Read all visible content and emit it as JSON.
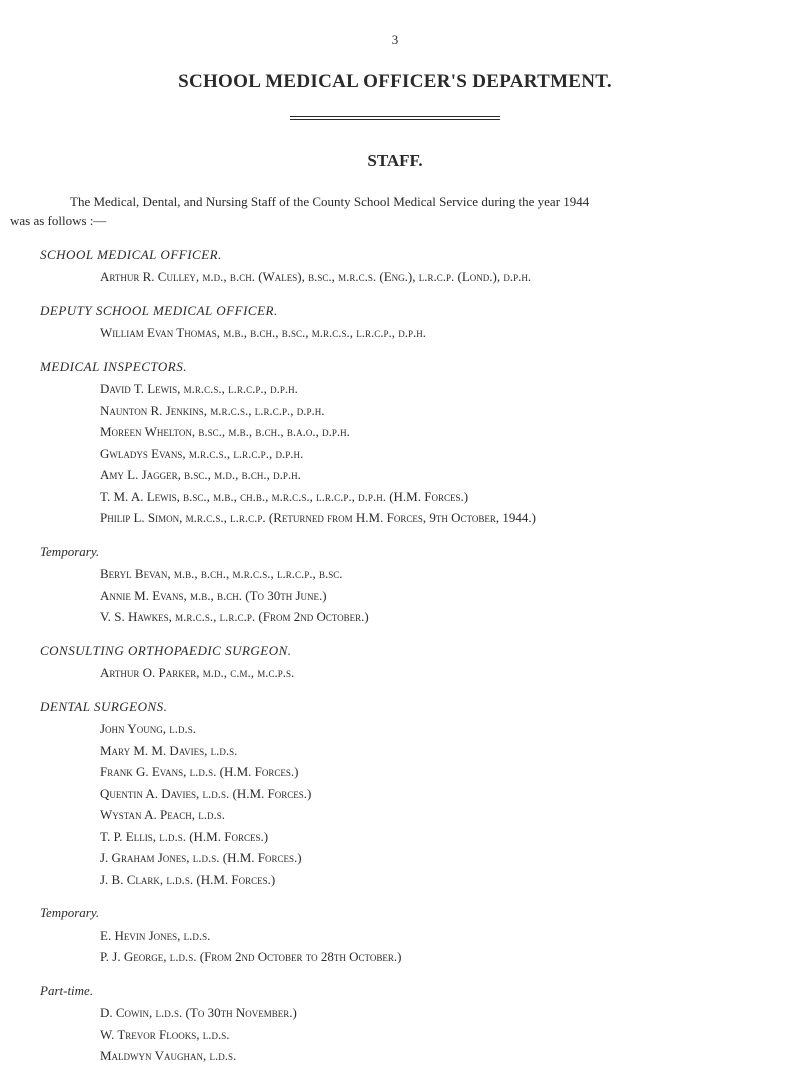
{
  "page_number": "3",
  "main_title": "SCHOOL MEDICAL OFFICER'S DEPARTMENT.",
  "staff_heading": "STAFF.",
  "intro_line1": "The Medical, Dental, and Nursing Staff of the County School Medical Service during the year 1944",
  "intro_line2": "was as follows :—",
  "sections": {
    "smo": {
      "title": "SCHOOL MEDICAL OFFICER.",
      "people": [
        "Arthur R. Culley, m.d., b.ch. (Wales), b.sc., m.r.c.s. (Eng.), l.r.c.p. (Lond.), d.p.h."
      ]
    },
    "dsmo": {
      "title": "DEPUTY SCHOOL MEDICAL OFFICER.",
      "people": [
        "William Evan Thomas, m.b., b.ch., b.sc., m.r.c.s., l.r.c.p., d.p.h."
      ]
    },
    "mi": {
      "title": "MEDICAL INSPECTORS.",
      "people": [
        "David T. Lewis, m.r.c.s., l.r.c.p., d.p.h.",
        "Naunton R. Jenkins, m.r.c.s., l.r.c.p., d.p.h.",
        "Moreen Whelton, b.sc., m.b., b.ch., b.a.o., d.p.h.",
        "Gwladys Evans, m.r.c.s., l.r.c.p., d.p.h.",
        "Amy L. Jagger, b.sc., m.d., b.ch., d.p.h.",
        "T. M. A. Lewis, b.sc., m.b., ch.b., m.r.c.s., l.r.c.p., d.p.h.   (H.M. Forces.)",
        "Philip L. Simon, m.r.c.s., l.r.c.p.   (Returned from H.M. Forces, 9th October, 1944.)"
      ]
    },
    "mi_temp": {
      "title": "Temporary.",
      "people": [
        "Beryl Bevan, m.b., b.ch., m.r.c.s., l.r.c.p., b.sc.",
        "Annie M. Evans, m.b., b.ch.   (To 30th June.)",
        "V. S. Hawkes, m.r.c.s., l.r.c.p.   (From 2nd October.)"
      ]
    },
    "cos": {
      "title": "CONSULTING ORTHOPAEDIC SURGEON.",
      "people": [
        "Arthur O. Parker, m.d., c.m., m.c.p.s."
      ]
    },
    "ds": {
      "title": "DENTAL SURGEONS.",
      "people": [
        "John Young, l.d.s.",
        "Mary M. M. Davies, l.d.s.",
        "Frank G. Evans, l.d.s.   (H.M. Forces.)",
        "Quentin A. Davies, l.d.s.   (H.M. Forces.)",
        "Wystan A. Peach, l.d.s.",
        "T. P. Ellis, l.d.s.   (H.M. Forces.)",
        "J. Graham Jones, l.d.s.   (H.M. Forces.)",
        "J. B. Clark, l.d.s.   (H.M. Forces.)"
      ]
    },
    "ds_temp": {
      "title": "Temporary.",
      "people": [
        "E. Hevin Jones, l.d.s.",
        "P. J. George, l.d.s.   (From 2nd October to 28th October.)"
      ]
    },
    "ds_pt": {
      "title": "Part-time.",
      "people": [
        "D. Cowin, l.d.s.   (To 30th November.)",
        "W. Trevor Flooks, l.d.s.",
        "Maldwyn Vaughan, l.d.s."
      ]
    }
  }
}
